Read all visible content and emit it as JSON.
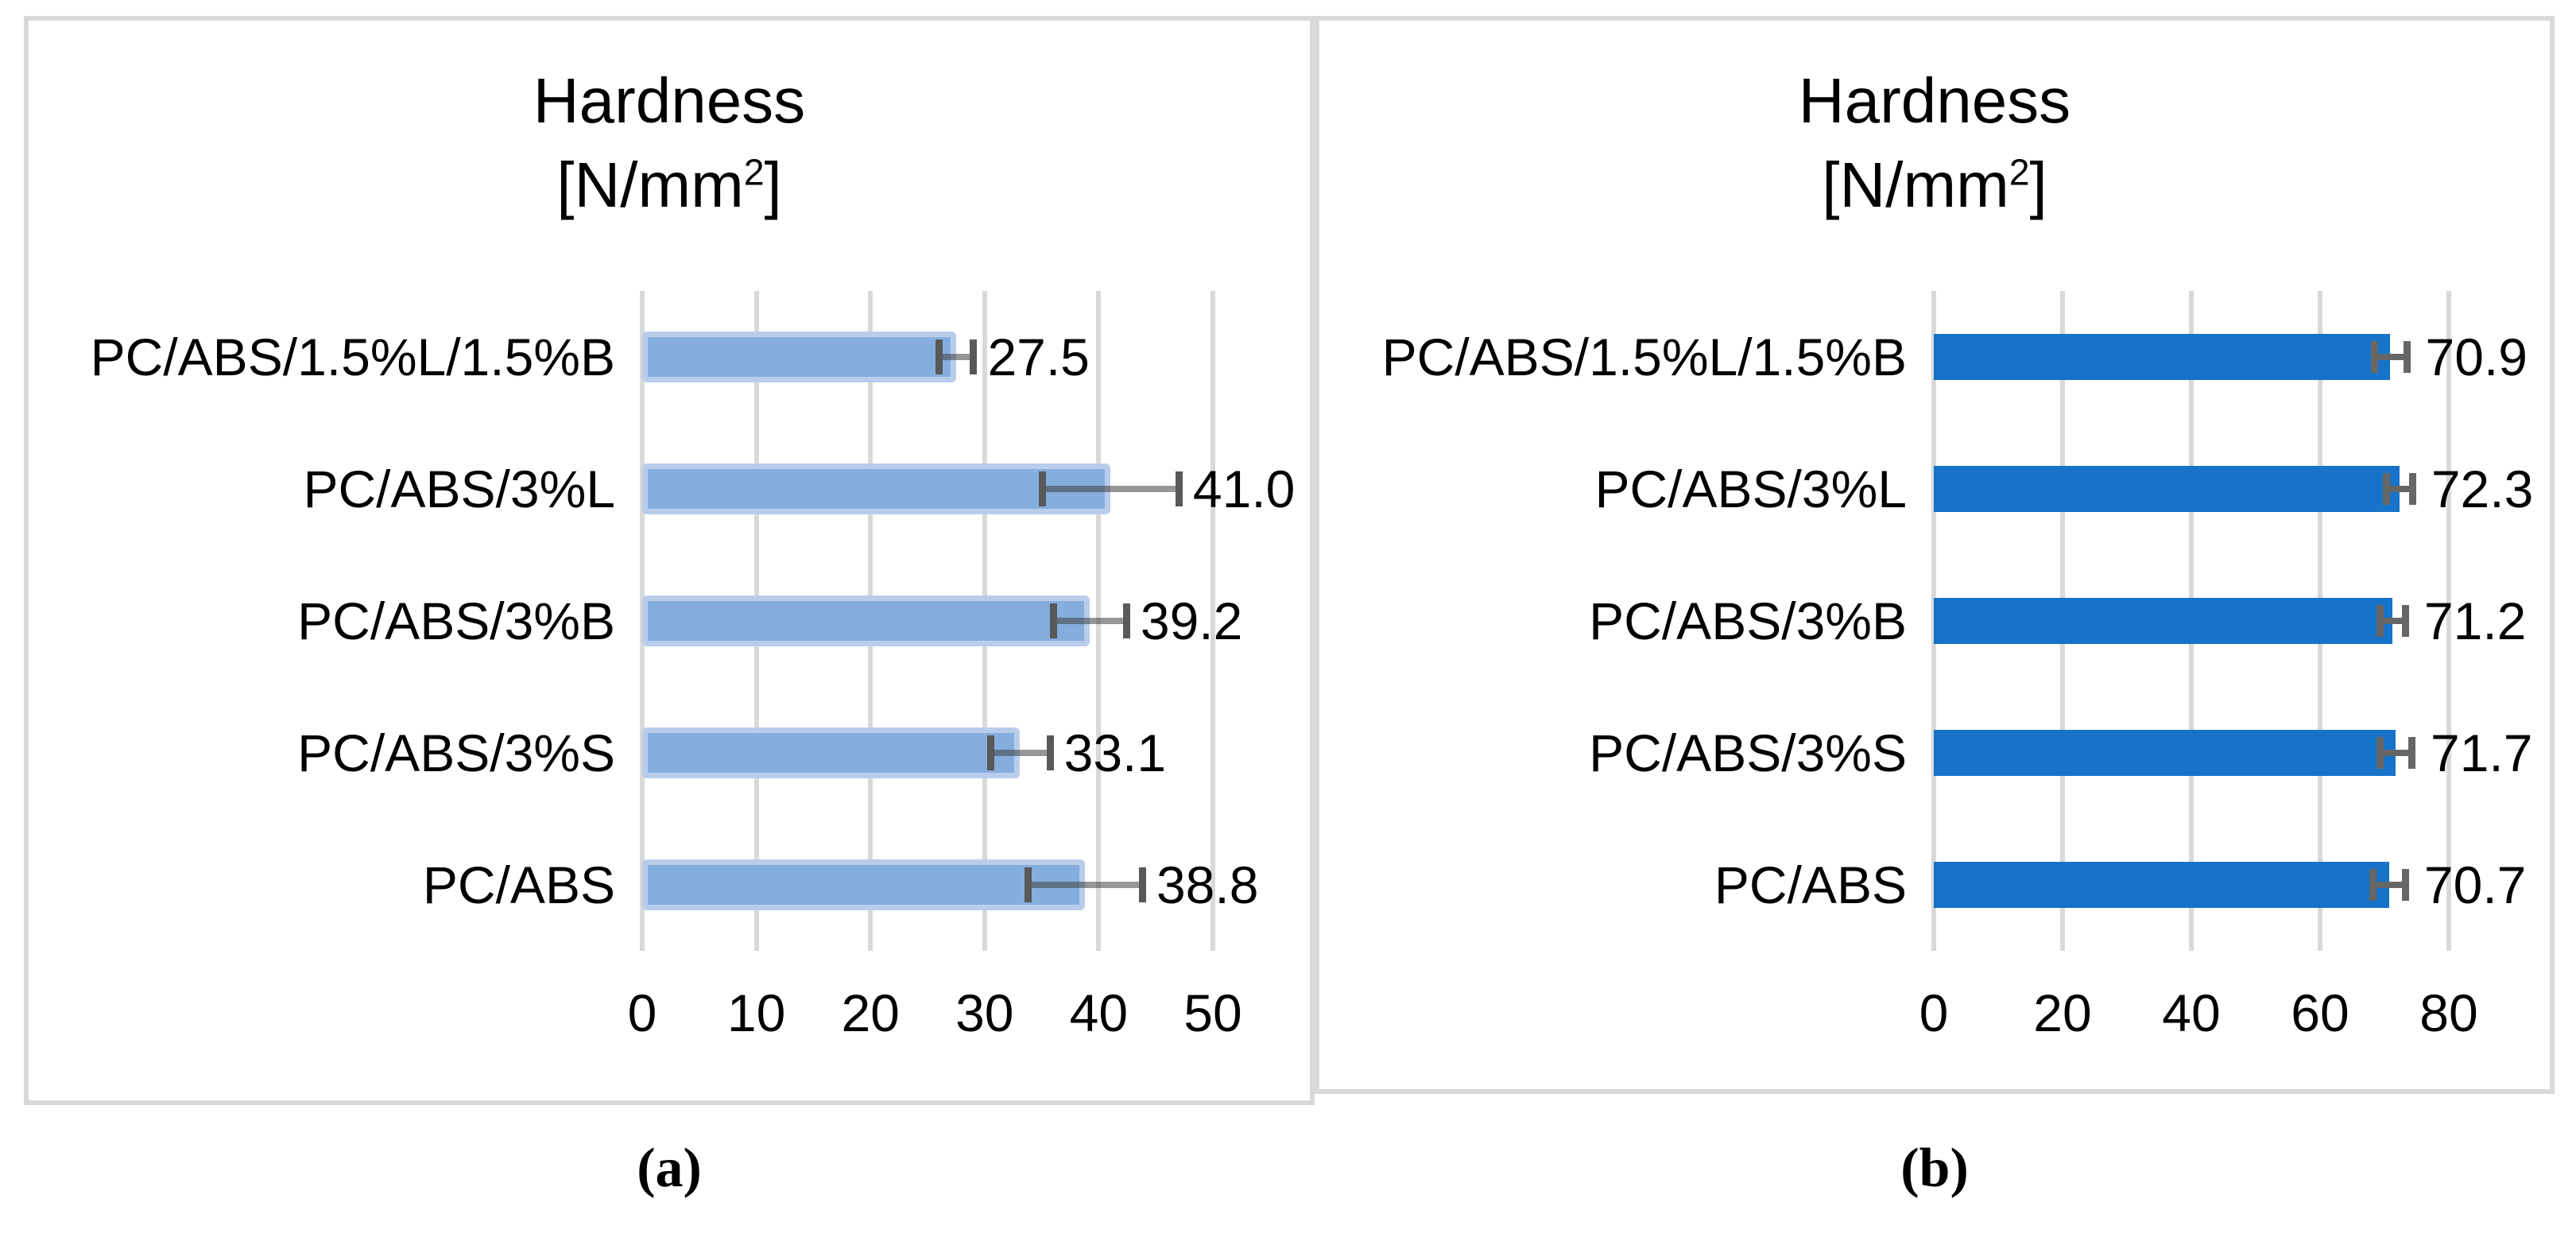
{
  "captions": {
    "a": "(a)",
    "b": "(b)"
  },
  "titles": {
    "line1": "Hardness",
    "unit_prefix": "[N/mm",
    "unit_sup": "2",
    "unit_suffix": "]"
  },
  "colors": {
    "panel_border": "#d9d9d9",
    "gridline": "#d9d9d9",
    "bar_a_fill": "#85aede",
    "bar_a_border": "#b9cdeb",
    "bar_b_fill": "#1673c9",
    "error_line_a": "#4040408C",
    "error_cap_a": "#595959",
    "error_line_b": "#666666",
    "error_cap_b": "#666666",
    "text": "#000000"
  },
  "chart_data": [
    {
      "type": "bar",
      "orientation": "horizontal",
      "panel": "a",
      "title": "Hardness [N/mm²]",
      "categories": [
        "PC/ABS/1.5%L/1.5%B",
        "PC/ABS/3%L",
        "PC/ABS/3%B",
        "PC/ABS/3%S",
        "PC/ABS"
      ],
      "values": [
        27.5,
        41.0,
        39.2,
        33.1,
        38.8
      ],
      "errors": [
        1.5,
        6.0,
        3.2,
        2.6,
        5.0
      ],
      "data_labels": [
        "27.5",
        "41.0",
        "39.2",
        "33.1",
        "38.8"
      ],
      "xlim": [
        0,
        50
      ],
      "xticks": [
        0,
        10,
        20,
        30,
        40,
        50
      ],
      "grid": true,
      "legend": false
    },
    {
      "type": "bar",
      "orientation": "horizontal",
      "panel": "b",
      "title": "Hardness [N/mm²]",
      "categories": [
        "PC/ABS/1.5%L/1.5%B",
        "PC/ABS/3%L",
        "PC/ABS/3%B",
        "PC/ABS/3%S",
        "PC/ABS"
      ],
      "values": [
        70.9,
        72.3,
        71.2,
        71.7,
        70.7
      ],
      "errors": [
        2.5,
        2.0,
        2.0,
        2.5,
        2.5
      ],
      "data_labels": [
        "70.9",
        "72.3",
        "71.2",
        "71.7",
        "70.7"
      ],
      "xlim": [
        0,
        80
      ],
      "xticks": [
        0,
        20,
        40,
        60,
        80
      ],
      "grid": true,
      "legend": false
    }
  ]
}
